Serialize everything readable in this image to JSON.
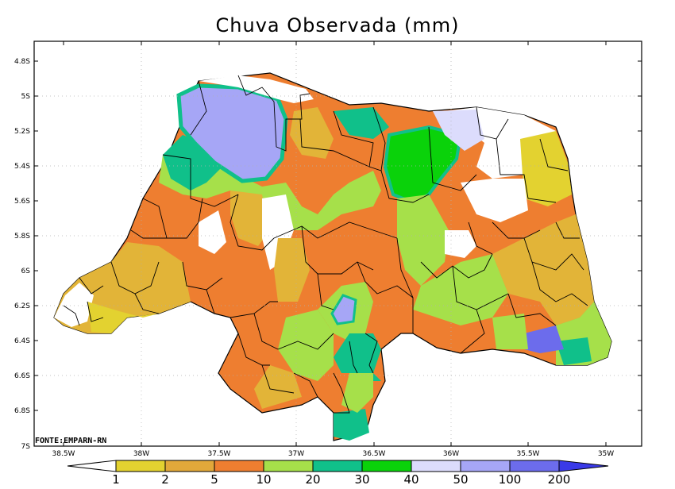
{
  "title": "Chuva Observada (mm)",
  "source_note": "FONTE:EMPARN-RN",
  "axes": {
    "lat_labels": [
      "4.8S",
      "5S",
      "5.2S",
      "5.4S",
      "5.6S",
      "5.8S",
      "6S",
      "6.2S",
      "6.4S",
      "6.6S",
      "6.8S",
      "7S"
    ],
    "lon_labels": [
      "38.5W",
      "38W",
      "37.5W",
      "37W",
      "36.5W",
      "36W",
      "35.5W",
      "35W"
    ]
  },
  "colorbar": {
    "labels": [
      "1",
      "2",
      "5",
      "10",
      "20",
      "30",
      "40",
      "50",
      "100",
      "200"
    ],
    "colors": [
      "#e3d230",
      "#e2b438",
      "#e39a38",
      "#ee7a2c",
      "#a6e04a",
      "#4ec45a",
      "#12b07a",
      "#08d008",
      "#d8d8ff",
      "#a8a8f8",
      "#6e6ee8",
      "#3a3ae8"
    ]
  },
  "legend_colors": {
    "1-2": "#e3d230",
    "2-5": "#e2a83a",
    "5-10": "#ee7e30",
    "10-20": "#a6e04a",
    "20-30": "#10c08a",
    "30-40": "#0ad20a",
    "40-50": "#dcdcfc",
    "50-100": "#a6a6f6",
    "100-200": "#6c6cec"
  }
}
